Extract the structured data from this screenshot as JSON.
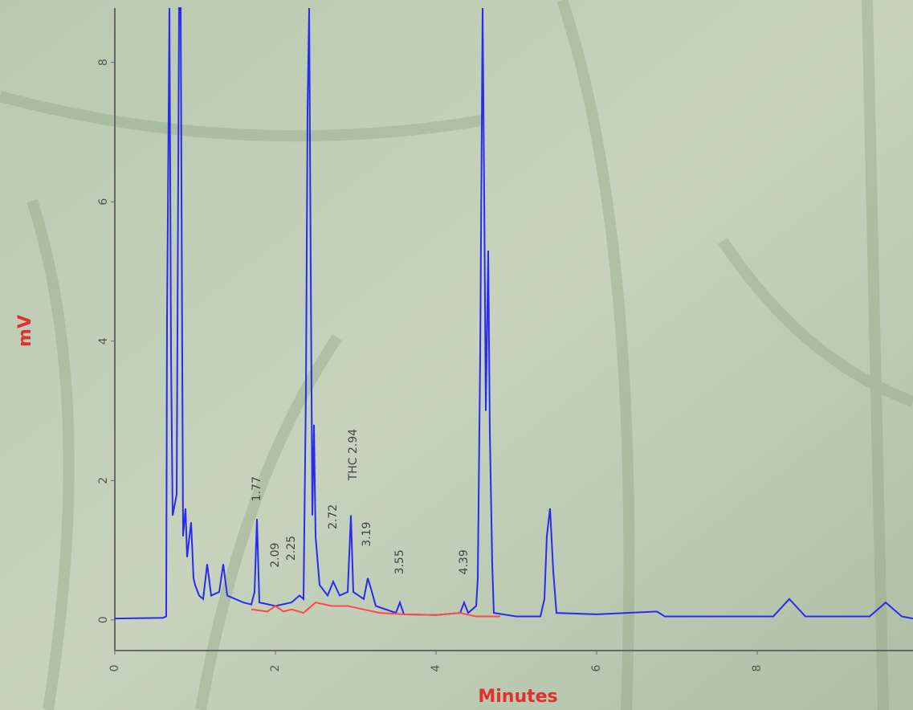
{
  "chart_data": {
    "type": "line",
    "x_label": "Minutes",
    "y_label": "mV",
    "xlim": [
      0,
      9.94
    ],
    "ylim": [
      -0.44,
      8.78
    ],
    "xticks": [
      0,
      2,
      4,
      6,
      8
    ],
    "yticks": [
      0,
      2,
      4,
      6,
      8
    ],
    "series": [
      {
        "color": "#2a2af0",
        "x": [
          0,
          0.6,
          0.64,
          0.65,
          0.68,
          0.7,
          0.72,
          0.77,
          0.8,
          0.82,
          0.85,
          0.88,
          0.9,
          0.95,
          0.98,
          1.0,
          1.05,
          1.1,
          1.15,
          1.2,
          1.3,
          1.35,
          1.4,
          1.5,
          1.6,
          1.7,
          1.74,
          1.77,
          1.8,
          2.0,
          2.2,
          2.3,
          2.35,
          2.38,
          2.4,
          2.42,
          2.44,
          2.46,
          2.48,
          2.5,
          2.55,
          2.65,
          2.72,
          2.8,
          2.9,
          2.94,
          2.97,
          3.1,
          3.15,
          3.19,
          3.25,
          3.5,
          3.55,
          3.6,
          4.0,
          4.3,
          4.35,
          4.4,
          4.5,
          4.52,
          4.55,
          4.58,
          4.6,
          4.62,
          4.65,
          4.67,
          4.7,
          4.72,
          5.0,
          5.3,
          5.35,
          5.38,
          5.42,
          5.46,
          5.5,
          6.0,
          6.75,
          6.85,
          8.2,
          8.4,
          8.6,
          9.4,
          9.6,
          9.8,
          9.94
        ],
        "values": [
          0.02,
          0.03,
          0.05,
          4.3,
          8.78,
          3.8,
          1.5,
          1.8,
          8.78,
          8.78,
          1.2,
          1.6,
          0.9,
          1.4,
          0.6,
          0.5,
          0.35,
          0.3,
          0.8,
          0.35,
          0.4,
          0.8,
          0.35,
          0.3,
          0.25,
          0.22,
          0.4,
          1.45,
          0.25,
          0.2,
          0.25,
          0.35,
          0.3,
          3.3,
          7.3,
          8.78,
          5,
          1.5,
          2.8,
          1.2,
          0.5,
          0.35,
          0.55,
          0.35,
          0.4,
          1.5,
          0.4,
          0.3,
          0.6,
          0.45,
          0.2,
          0.1,
          0.25,
          0.08,
          0.07,
          0.1,
          0.25,
          0.1,
          0.2,
          0.6,
          3.8,
          8.78,
          6.1,
          3,
          5.3,
          2.7,
          0.8,
          0.1,
          0.05,
          0.05,
          0.3,
          1.2,
          1.6,
          0.7,
          0.1,
          0.08,
          0.12,
          0.05,
          0.05,
          0.3,
          0.05,
          0.05,
          0.25,
          0.05,
          0.02
        ]
      },
      {
        "color": "#ff4a4a",
        "x": [
          1.7,
          1.9,
          2.0,
          2.1,
          2.2,
          2.35,
          2.5,
          2.7,
          2.9,
          3.1,
          3.3,
          3.6,
          4.0,
          4.3,
          4.5,
          4.8
        ],
        "values": [
          0.15,
          0.12,
          0.2,
          0.12,
          0.15,
          0.1,
          0.25,
          0.2,
          0.2,
          0.15,
          0.1,
          0.08,
          0.07,
          0.1,
          0.05,
          0.05
        ]
      }
    ],
    "annotations": [
      {
        "text": "1.77",
        "x": 1.77,
        "y": 1.7
      },
      {
        "text": "2.09",
        "x": 2.0,
        "y": 0.75
      },
      {
        "text": "2.25",
        "x": 2.2,
        "y": 0.85
      },
      {
        "text": "2.72",
        "x": 2.72,
        "y": 1.3
      },
      {
        "text": "THC 2.94",
        "x": 2.97,
        "y": 2.0
      },
      {
        "text": "3.19",
        "x": 3.14,
        "y": 1.05
      },
      {
        "text": "3.55",
        "x": 3.55,
        "y": 0.65
      },
      {
        "text": "4.39",
        "x": 4.35,
        "y": 0.65
      }
    ]
  }
}
